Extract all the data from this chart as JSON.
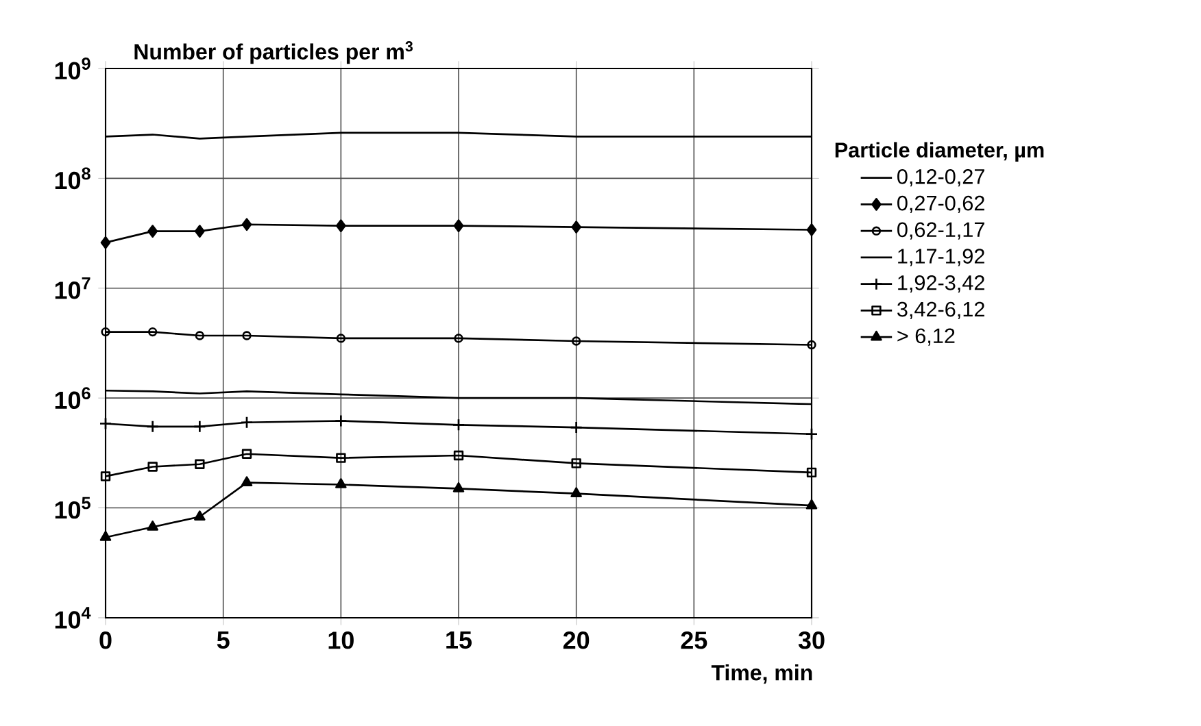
{
  "chart_data": {
    "type": "line",
    "ylabel": "Number of particles per m$^{3}$",
    "xlabel": "Time, min",
    "legend_title": "Particle diameter, µm",
    "x": [
      0,
      2,
      4,
      6,
      10,
      15,
      20,
      30
    ],
    "series": [
      {
        "name": "0,12-0,27",
        "color": "#000000",
        "marker": "none",
        "values": [
          240000000,
          250000000,
          230000000,
          240000000,
          260000000,
          260000000,
          240000000,
          240000000
        ]
      },
      {
        "name": "0,27-0,62",
        "color": "#000000",
        "marker": "diamond",
        "values": [
          26000000,
          33000000,
          33000000,
          38000000,
          37000000,
          37000000,
          36000000,
          34000000
        ]
      },
      {
        "name": "0,62-1,17",
        "color": "#000000",
        "marker": "circle",
        "values": [
          4000000,
          4000000,
          3700000,
          3700000,
          3500000,
          3500000,
          3300000,
          3050000
        ]
      },
      {
        "name": "1,17-1,92",
        "color": "#000000",
        "marker": "none",
        "values": [
          1170000,
          1150000,
          1100000,
          1150000,
          1080000,
          1000000,
          1000000,
          880000
        ]
      },
      {
        "name": "1,92-3,42",
        "color": "#000000",
        "marker": "cross",
        "values": [
          585000,
          550000,
          550000,
          600000,
          620000,
          570000,
          540000,
          470000
        ]
      },
      {
        "name": "3,42-6,12",
        "color": "#000000",
        "marker": "square",
        "values": [
          194000,
          237000,
          250000,
          310000,
          285000,
          300000,
          255000,
          210000
        ]
      },
      {
        "name": "> 6,12",
        "color": "#000000",
        "marker": "triangle",
        "values": [
          54000,
          67000,
          83000,
          170000,
          163000,
          150000,
          135000,
          105000
        ]
      }
    ],
    "log": "y",
    "grid": true,
    "legend": "right",
    "xlim": [
      0,
      30
    ],
    "xticks": [
      0,
      5,
      10,
      15,
      20,
      25,
      30
    ],
    "ylim": [
      10000,
      1000000000
    ],
    "yticks": [
      {
        "value": 10000,
        "label": "10$^{4}$"
      },
      {
        "value": 100000,
        "label": "10$^{5}$"
      },
      {
        "value": 1000000,
        "label": "10$^{6}$"
      },
      {
        "value": 10000000,
        "label": "10$^{7}$"
      },
      {
        "value": 100000000,
        "label": "10$^{8}$"
      },
      {
        "value": 1000000000,
        "label": "10$^{9}$"
      }
    ]
  }
}
